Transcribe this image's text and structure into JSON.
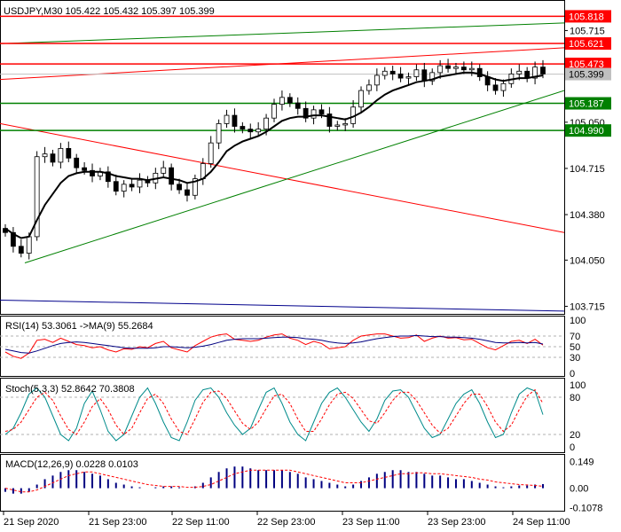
{
  "header": {
    "symbol": "USDJPY,M30",
    "open": "105.422",
    "high": "105.432",
    "low": "105.397",
    "close": "105.399"
  },
  "chart_data": [
    {
      "type": "candlestick",
      "title": "USDJPY,M30",
      "y_ticks": [
        "105.715",
        "105.050",
        "104.715",
        "104.380",
        "104.050",
        "103.715"
      ],
      "ylim": [
        103.66,
        105.93
      ],
      "x_ticks": [
        "21 Sep 2020",
        "21 Sep 23:00",
        "22 Sep 11:00",
        "22 Sep 23:00",
        "23 Sep 11:00",
        "23 Sep 23:00",
        "24 Sep 11:00"
      ],
      "price_labels": [
        {
          "text": "105.818",
          "value": 105.818,
          "color": "#ff0000"
        },
        {
          "text": "105.621",
          "value": 105.621,
          "color": "#ff0000"
        },
        {
          "text": "105.473",
          "value": 105.473,
          "color": "#ff0000"
        },
        {
          "text": "105.399",
          "value": 105.399,
          "color": "#c0c0c0"
        },
        {
          "text": "105.187",
          "value": 105.187,
          "color": "#008000"
        },
        {
          "text": "104.990",
          "value": 104.99,
          "color": "#008000"
        }
      ],
      "horizontal_levels": [
        {
          "value": 105.818,
          "color": "#ff0000"
        },
        {
          "value": 105.621,
          "color": "#ff0000"
        },
        {
          "value": 105.473,
          "color": "#ff0000"
        },
        {
          "value": 105.187,
          "color": "#008000"
        },
        {
          "value": 104.99,
          "color": "#008000"
        }
      ],
      "close_series": [
        104.25,
        104.15,
        104.1,
        104.22,
        104.8,
        104.82,
        104.76,
        104.86,
        104.79,
        104.72,
        104.7,
        104.66,
        104.69,
        104.62,
        104.55,
        104.6,
        104.58,
        104.63,
        104.61,
        104.68,
        104.72,
        104.6,
        104.56,
        104.52,
        104.64,
        104.75,
        104.9,
        105.04,
        105.1,
        105.02,
        105.0,
        104.98,
        105.0,
        105.08,
        105.18,
        105.23,
        105.19,
        105.15,
        105.08,
        105.14,
        105.11,
        105.02,
        105.03,
        105.04,
        105.16,
        105.28,
        105.32,
        105.39,
        105.42,
        105.4,
        105.37,
        105.38,
        105.43,
        105.35,
        105.41,
        105.46,
        105.44,
        105.45,
        105.43,
        105.44,
        105.38,
        105.32,
        105.28,
        105.33,
        105.4,
        105.42,
        105.37,
        105.45,
        105.4
      ],
      "moving_average": [
        104.28,
        104.24,
        104.21,
        104.22,
        104.34,
        104.45,
        104.53,
        104.61,
        104.66,
        104.68,
        104.69,
        104.69,
        104.69,
        104.68,
        104.66,
        104.65,
        104.64,
        104.64,
        104.63,
        104.64,
        104.65,
        104.64,
        104.63,
        104.61,
        104.62,
        104.64,
        104.69,
        104.76,
        104.84,
        104.88,
        104.91,
        104.93,
        104.95,
        104.98,
        105.02,
        105.06,
        105.08,
        105.09,
        105.09,
        105.1,
        105.1,
        105.09,
        105.08,
        105.07,
        105.09,
        105.12,
        105.16,
        105.21,
        105.25,
        105.28,
        105.3,
        105.32,
        105.34,
        105.35,
        105.36,
        105.38,
        105.39,
        105.4,
        105.41,
        105.41,
        105.4,
        105.38,
        105.36,
        105.35,
        105.36,
        105.37,
        105.37,
        105.38,
        105.39
      ]
    },
    {
      "type": "line",
      "title": "RSI(14) 53.3061",
      "ma_label": "->MA(9) 55.2684",
      "y_ticks": [
        "100",
        "70",
        "50",
        "30",
        "0"
      ],
      "ylim": [
        0,
        100
      ],
      "series": [
        {
          "name": "RSI(14)",
          "values": [
            40,
            32,
            28,
            38,
            62,
            64,
            58,
            66,
            60,
            54,
            52,
            48,
            50,
            44,
            40,
            46,
            45,
            50,
            48,
            56,
            60,
            48,
            44,
            40,
            52,
            60,
            68,
            72,
            74,
            64,
            62,
            60,
            62,
            68,
            72,
            74,
            66,
            62,
            54,
            60,
            56,
            46,
            48,
            50,
            62,
            70,
            72,
            74,
            74,
            70,
            66,
            67,
            72,
            60,
            66,
            70,
            66,
            67,
            63,
            64,
            56,
            48,
            44,
            52,
            60,
            62,
            56,
            64,
            53
          ]
        },
        {
          "name": "MA(9)",
          "values": [
            45,
            42,
            39,
            38,
            42,
            47,
            52,
            56,
            58,
            59,
            58,
            56,
            54,
            52,
            50,
            48,
            47,
            47,
            47,
            48,
            50,
            50,
            49,
            48,
            49,
            51,
            54,
            58,
            62,
            64,
            65,
            65,
            65,
            66,
            67,
            68,
            68,
            67,
            65,
            64,
            62,
            59,
            57,
            56,
            57,
            59,
            62,
            65,
            67,
            69,
            70,
            70,
            71,
            70,
            69,
            69,
            68,
            68,
            67,
            66,
            64,
            61,
            58,
            57,
            57,
            58,
            57,
            58,
            55
          ]
        }
      ]
    },
    {
      "type": "line",
      "title": "Stoch(5,3,3) 52.8642 70.3808",
      "y_ticks": [
        "100",
        "80",
        "20",
        "0"
      ],
      "ylim": [
        0,
        100
      ],
      "series": [
        {
          "name": "%K",
          "values": [
            20,
            30,
            55,
            85,
            95,
            80,
            50,
            20,
            10,
            30,
            70,
            90,
            60,
            25,
            10,
            20,
            50,
            80,
            95,
            70,
            40,
            15,
            10,
            40,
            75,
            92,
            95,
            80,
            55,
            35,
            20,
            30,
            60,
            88,
            95,
            70,
            40,
            20,
            10,
            40,
            70,
            88,
            95,
            80,
            60,
            40,
            25,
            45,
            75,
            90,
            92,
            80,
            55,
            30,
            15,
            20,
            45,
            70,
            85,
            92,
            70,
            40,
            15,
            20,
            55,
            85,
            95,
            90,
            52
          ]
        },
        {
          "name": "%D",
          "values": [
            25,
            28,
            40,
            60,
            80,
            88,
            75,
            50,
            28,
            20,
            40,
            65,
            78,
            60,
            35,
            20,
            30,
            55,
            78,
            85,
            70,
            45,
            25,
            20,
            45,
            72,
            88,
            90,
            78,
            58,
            38,
            28,
            40,
            62,
            82,
            85,
            70,
            45,
            25,
            25,
            45,
            68,
            85,
            88,
            78,
            60,
            42,
            38,
            55,
            75,
            88,
            88,
            75,
            55,
            35,
            22,
            30,
            50,
            70,
            85,
            85,
            65,
            40,
            25,
            35,
            60,
            82,
            92,
            70
          ]
        }
      ]
    },
    {
      "type": "bar",
      "title": "MACD(12,26,9) 0.0228 0.0103",
      "y_ticks": [
        "0.149",
        "0.00",
        "-0.1078"
      ],
      "ylim": [
        -0.125,
        0.18
      ],
      "series": [
        {
          "name": "MACD",
          "values": [
            -0.02,
            -0.03,
            -0.03,
            -0.02,
            0.02,
            0.05,
            0.07,
            0.09,
            0.1,
            0.1,
            0.09,
            0.08,
            0.07,
            0.05,
            0.03,
            0.02,
            0.01,
            0.005,
            0.0,
            0.005,
            0.01,
            0.01,
            0.005,
            0.0,
            0.01,
            0.03,
            0.06,
            0.09,
            0.11,
            0.12,
            0.12,
            0.11,
            0.1,
            0.1,
            0.1,
            0.1,
            0.09,
            0.08,
            0.06,
            0.05,
            0.04,
            0.03,
            0.02,
            0.01,
            0.02,
            0.04,
            0.06,
            0.08,
            0.09,
            0.1,
            0.1,
            0.09,
            0.09,
            0.08,
            0.07,
            0.07,
            0.06,
            0.05,
            0.05,
            0.04,
            0.03,
            0.02,
            0.01,
            0.005,
            0.01,
            0.015,
            0.015,
            0.02,
            0.0228
          ]
        },
        {
          "name": "Signal",
          "values": [
            0.0,
            -0.01,
            -0.02,
            -0.02,
            -0.01,
            0.01,
            0.03,
            0.05,
            0.07,
            0.08,
            0.09,
            0.09,
            0.08,
            0.07,
            0.06,
            0.05,
            0.04,
            0.03,
            0.02,
            0.015,
            0.01,
            0.01,
            0.01,
            0.005,
            0.005,
            0.01,
            0.02,
            0.04,
            0.06,
            0.08,
            0.09,
            0.1,
            0.1,
            0.1,
            0.1,
            0.1,
            0.1,
            0.09,
            0.08,
            0.07,
            0.06,
            0.05,
            0.04,
            0.03,
            0.03,
            0.03,
            0.04,
            0.05,
            0.06,
            0.07,
            0.08,
            0.08,
            0.085,
            0.085,
            0.08,
            0.08,
            0.075,
            0.07,
            0.065,
            0.06,
            0.05,
            0.045,
            0.035,
            0.03,
            0.025,
            0.02,
            0.018,
            0.015,
            0.0103
          ]
        }
      ]
    }
  ],
  "colors": {
    "bull_body": "#ffffff",
    "bear_body": "#000000",
    "ma_line": "#000000",
    "support": "#008000",
    "resistance": "#ff0000",
    "long_trend": "#00008b",
    "rsi_line": "#ff0000",
    "rsi_ma": "#000080",
    "stoch_k": "#008b8b",
    "stoch_d": "#ff0000",
    "macd_bars": "#000080",
    "macd_signal": "#ff0000"
  }
}
